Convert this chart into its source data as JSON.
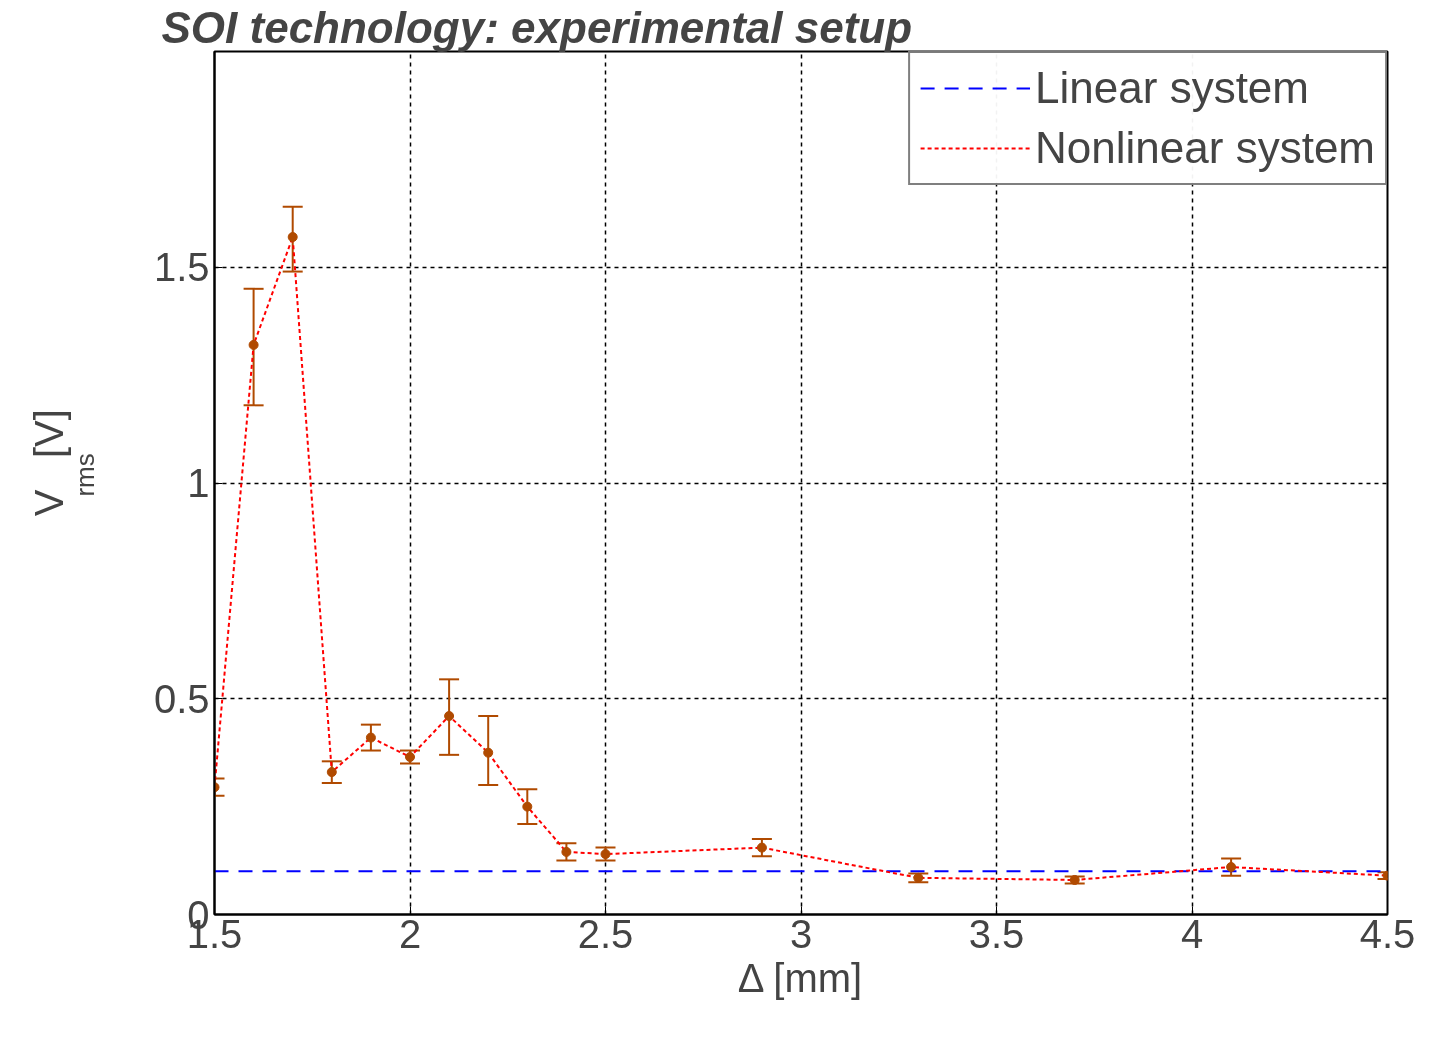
{
  "chart_data": {
    "type": "line",
    "title": "SOI technology: experimental setup",
    "xlabel": "Δ [mm]",
    "ylabel": "V$_{rms}$ [V]",
    "xlim": [
      1.5,
      4.5
    ],
    "xticks": [
      1.5,
      2,
      2.5,
      3,
      3.5,
      4,
      4.5
    ],
    "ylim": [
      0,
      2
    ],
    "yticks": [
      0,
      0.5,
      1,
      1.5
    ],
    "grid": true,
    "legend": "top right",
    "series": [
      {
        "name": "Linear system",
        "color": "#0000ff",
        "line_style": "dashed",
        "marker": "none",
        "x": [
          1.5,
          4.5
        ],
        "values": [
          0.1,
          0.1
        ]
      },
      {
        "name": "Nonlinear system",
        "color": "#ff0000",
        "line_style": "dotted",
        "marker": "none",
        "x": [
          1.5,
          1.6,
          1.7,
          1.8,
          1.9,
          2.0,
          2.1,
          2.2,
          2.3,
          2.4,
          2.5,
          2.9,
          3.3,
          3.7,
          4.1,
          4.5
        ],
        "values": [
          0.295,
          1.32,
          1.57,
          0.33,
          0.41,
          0.365,
          0.46,
          0.375,
          0.25,
          0.145,
          0.14,
          0.155,
          0.085,
          0.08,
          0.11,
          0.09
        ]
      },
      {
        "type": "scatter",
        "color": "#b04a00",
        "marker": "circle",
        "x": [
          1.5,
          1.6,
          1.7,
          1.8,
          1.9,
          2.0,
          2.1,
          2.2,
          2.3,
          2.4,
          2.5,
          2.9,
          3.3,
          3.7,
          4.1,
          4.5
        ],
        "values": [
          0.295,
          1.32,
          1.57,
          0.33,
          0.41,
          0.365,
          0.46,
          0.375,
          0.25,
          0.145,
          0.14,
          0.155,
          0.085,
          0.08,
          0.11,
          0.09
        ],
        "errors": [
          0.02,
          [
            1.18,
            1.45
          ],
          [
            1.49,
            1.64
          ],
          0.025,
          0.03,
          0.015,
          [
            0.37,
            0.545
          ],
          [
            0.3,
            0.46
          ],
          [
            0.21,
            0.29
          ],
          0.02,
          0.015,
          0.02,
          0.01,
          0.008,
          0.02,
          0.008
        ]
      }
    ]
  }
}
